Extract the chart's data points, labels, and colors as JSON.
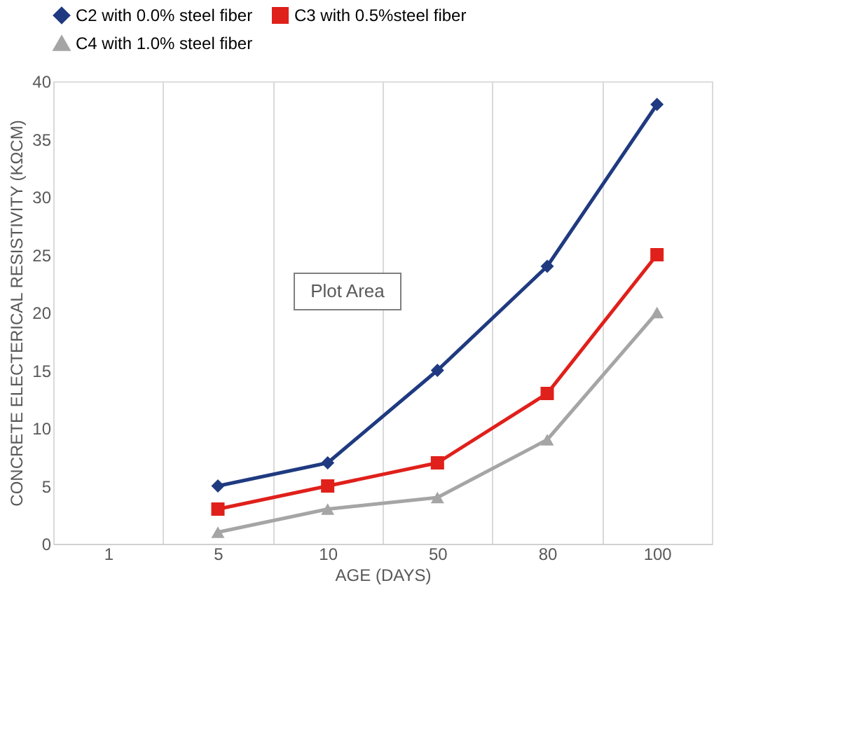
{
  "chart_data": {
    "type": "line",
    "xlabel": "AGE (DAYS)",
    "ylabel": "CONCRETE ELECTERICAL RESISTIVITY (KΩCM)",
    "categories": [
      "1",
      "5",
      "10",
      "50",
      "80",
      "100"
    ],
    "series": [
      {
        "name": "C2 with 0.0% steel fiber",
        "color": "#1f3a80",
        "marker": "diamond",
        "values": [
          null,
          5,
          7,
          15,
          24,
          38
        ]
      },
      {
        "name": "C3 with 0.5%steel fiber",
        "color": "#e0201b",
        "marker": "square",
        "values": [
          null,
          3,
          5,
          7,
          13,
          25
        ]
      },
      {
        "name": "C4 with 1.0% steel fiber",
        "color": "#a5a5a5",
        "marker": "triangle",
        "values": [
          null,
          1,
          3,
          4,
          9,
          20
        ]
      }
    ],
    "ylim": [
      0,
      40
    ],
    "yticks": [
      0,
      5,
      10,
      15,
      20,
      25,
      30,
      35,
      40
    ],
    "grid": "x",
    "legend": "top",
    "annotations": [
      "Plot Area"
    ]
  }
}
